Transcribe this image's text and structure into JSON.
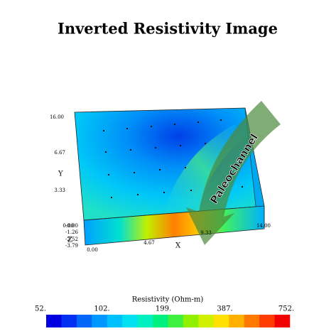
{
  "title": "Inverted Resistivity Image",
  "annotation": "Paleochannel",
  "axes": {
    "x": {
      "label": "X",
      "ticks": [
        "0.00",
        "4.67",
        "9.33",
        "14.00"
      ]
    },
    "y": {
      "label": "Y",
      "ticks": [
        "0.00",
        "3.33",
        "6.67",
        "16.00"
      ]
    },
    "z": {
      "label": "Z",
      "ticks": [
        "-0.00",
        "-1.26",
        "-2.52",
        "-3.79"
      ]
    }
  },
  "colorbar": {
    "title": "Resistivity (Ohm-m)",
    "labels": [
      "52.",
      "102.",
      "199.",
      "387.",
      "752."
    ],
    "colors": [
      "#0000e0",
      "#0030f0",
      "#0068f8",
      "#0098ff",
      "#00c0ff",
      "#00e0f0",
      "#00f0c0",
      "#00f080",
      "#40f040",
      "#90f000",
      "#d0f000",
      "#ffe000",
      "#ffb000",
      "#ff7800",
      "#ff3c00",
      "#f00000"
    ]
  }
}
